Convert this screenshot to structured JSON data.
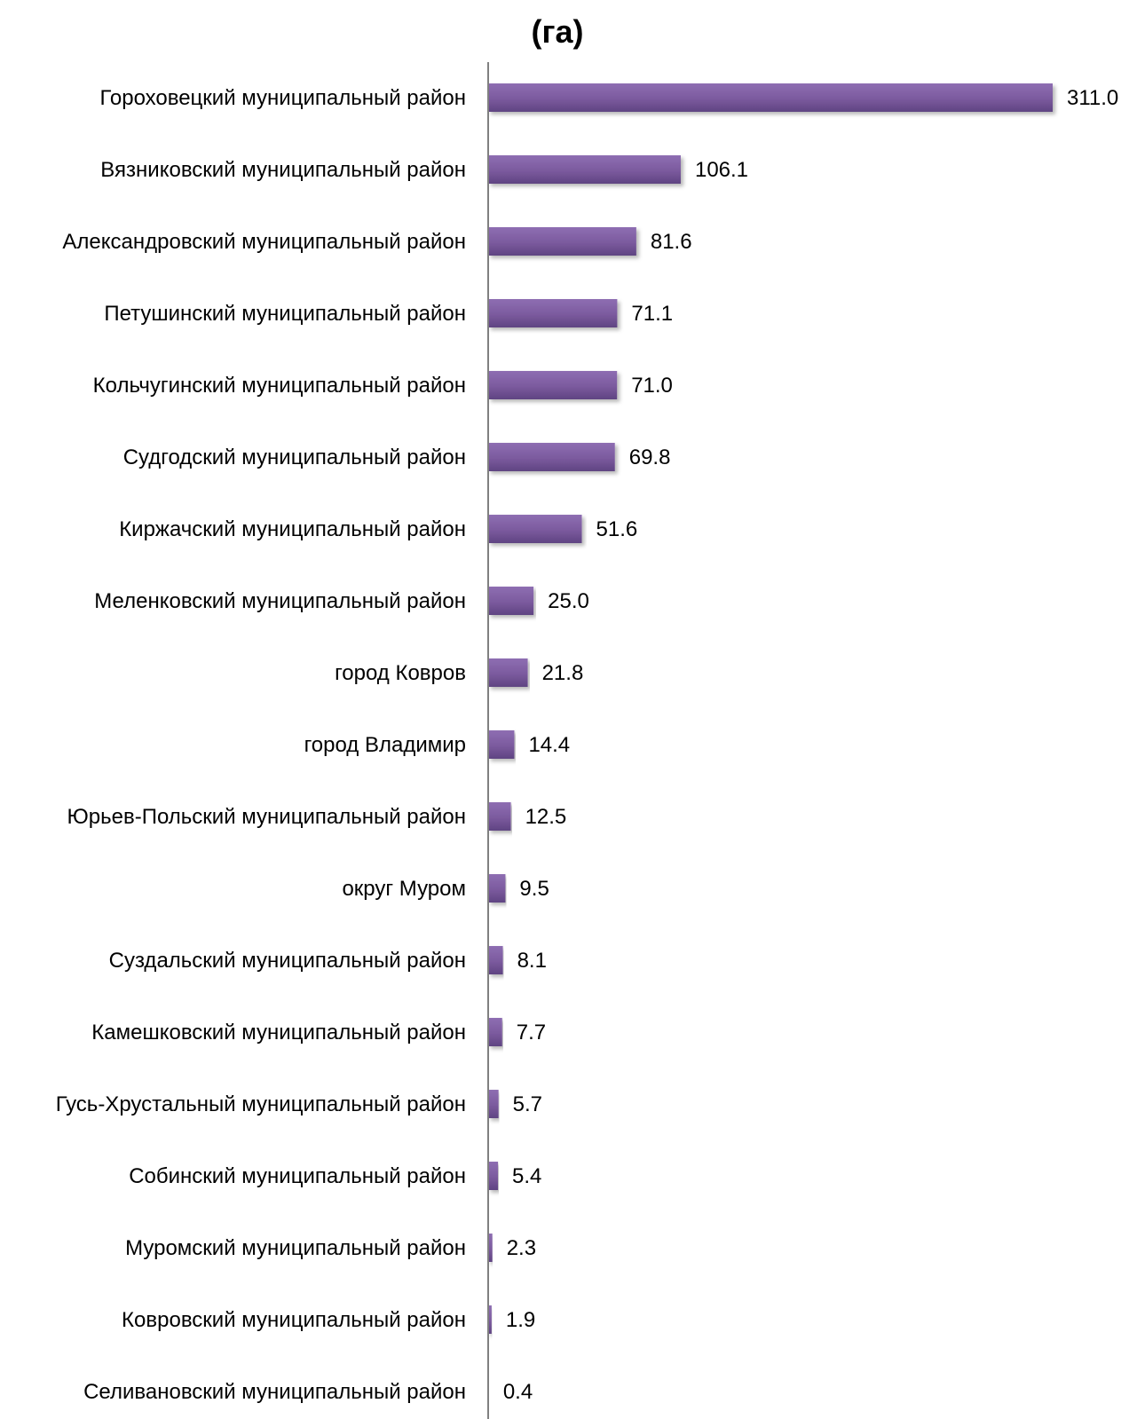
{
  "chart_data": {
    "type": "bar",
    "orientation": "horizontal",
    "title": "(га)",
    "xlabel": "",
    "ylabel": "",
    "xlim": [
      0,
      311
    ],
    "grid": false,
    "legend": "none",
    "bar_color": "#7b5a9e",
    "categories": [
      "Гороховецкий муниципальный район",
      "Вязниковский муниципальный район",
      "Александровский муниципальный район",
      "Петушинский муниципальный район",
      "Кольчугинский муниципальный район",
      "Судгодский муниципальный район",
      "Киржачский муниципальный район",
      "Меленковский муниципальный район",
      "город Ковров",
      "город Владимир",
      "Юрьев-Польский муниципальный район",
      "округ Муром",
      "Суздальский муниципальный район",
      "Камешковский муниципальный район",
      "Гусь-Хрустальный муниципальный район",
      "Собинский муниципальный район",
      "Муромский муниципальный район",
      "Ковровский муниципальный район",
      "Селивановский муниципальный район"
    ],
    "values": [
      311.0,
      106.1,
      81.6,
      71.1,
      71.0,
      69.8,
      51.6,
      25.0,
      21.8,
      14.4,
      12.5,
      9.5,
      8.1,
      7.7,
      5.7,
      5.4,
      2.3,
      1.9,
      0.4
    ],
    "value_labels": [
      "311.0",
      "106.1",
      "81.6",
      "71.1",
      "71.0",
      "69.8",
      "51.6",
      "25.0",
      "21.8",
      "14.4",
      "12.5",
      "9.5",
      "8.1",
      "7.7",
      "5.7",
      "5.4",
      "2.3",
      "1.9",
      "0.4"
    ]
  }
}
